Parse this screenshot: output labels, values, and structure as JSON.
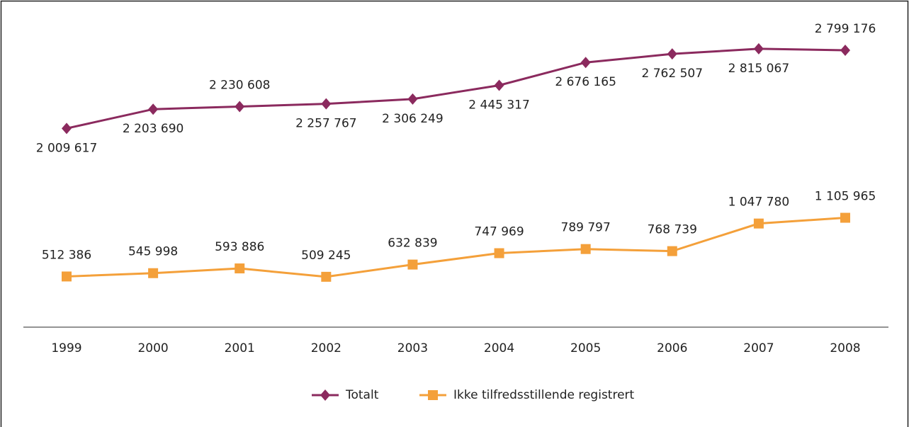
{
  "chart_data": {
    "type": "line",
    "categories": [
      "1999",
      "2000",
      "2001",
      "2002",
      "2003",
      "2004",
      "2005",
      "2006",
      "2007",
      "2008"
    ],
    "series": [
      {
        "name": "Totalt",
        "color": "#8b2a5e",
        "marker": "diamond",
        "values": [
          2009617,
          2203690,
          2230608,
          2257767,
          2306249,
          2445317,
          2676165,
          2762507,
          2815067,
          2799176
        ],
        "value_labels": [
          "2 009 617",
          "2 203 690",
          "2 230 608",
          "2 257 767",
          "2 306 249",
          "2 445 317",
          "2 676 165",
          "2 762 507",
          "2 815 067",
          "2 799 176"
        ]
      },
      {
        "name": "Ikke tilfredsstillende registrert",
        "color": "#f4a03a",
        "marker": "square",
        "values": [
          512386,
          545998,
          593886,
          509245,
          632839,
          747969,
          789797,
          768739,
          1047780,
          1105965
        ],
        "value_labels": [
          "512 386",
          "545 998",
          "593 886",
          "509 245",
          "632 839",
          "747 969",
          "789 797",
          "768 739",
          "1 047 780",
          "1 105 965"
        ]
      }
    ],
    "ylim": [
      0,
      3000000
    ],
    "legend": "bottom"
  }
}
